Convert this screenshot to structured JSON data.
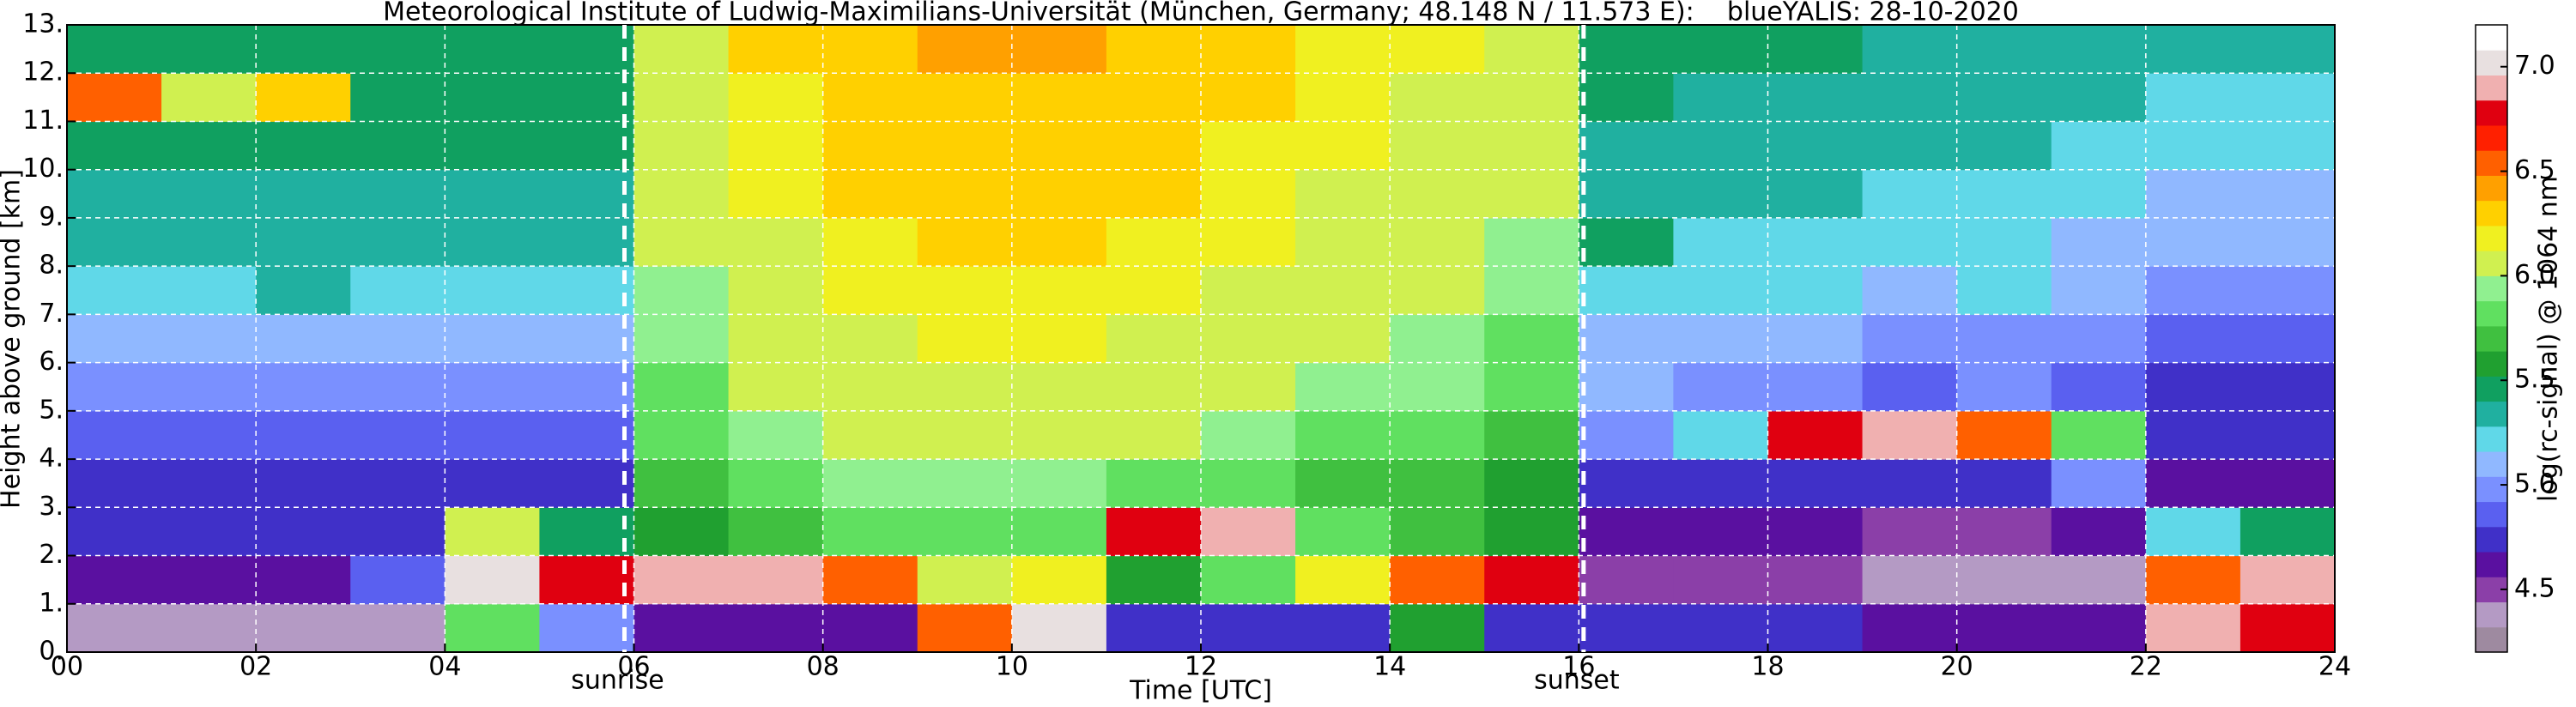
{
  "chart_data": {
    "type": "heatmap",
    "title": "Meteorological Institute of Ludwig-Maximilians-Universität (München, Germany; 48.148 N / 11.573 E):    blueYALIS: 28-10-2020",
    "x_label": "Time [UTC]",
    "y_label": "Height above ground [km]",
    "colorbar_label": "log(rc-signal) @ 1064 nm",
    "xlim": [
      0,
      24
    ],
    "ylim": [
      0,
      13
    ],
    "xticks": [
      {
        "value": 0,
        "label": "00"
      },
      {
        "value": 2,
        "label": "02"
      },
      {
        "value": 4,
        "label": "04"
      },
      {
        "value": 6,
        "label": "06"
      },
      {
        "value": 8,
        "label": "08"
      },
      10,
      12,
      14,
      16,
      18,
      20,
      22,
      24
    ],
    "yticks": [
      {
        "value": 0,
        "label": "0."
      },
      {
        "value": 1,
        "label": "1."
      },
      {
        "value": 2,
        "label": "2."
      },
      {
        "value": 3,
        "label": "3."
      },
      {
        "value": 4,
        "label": "4."
      },
      {
        "value": 5,
        "label": "5."
      },
      {
        "value": 6,
        "label": "6."
      },
      {
        "value": 7,
        "label": "7."
      },
      {
        "value": 8,
        "label": "8."
      },
      {
        "value": 9,
        "label": "9."
      },
      {
        "value": 10,
        "label": "10."
      },
      {
        "value": 11,
        "label": "11."
      },
      {
        "value": 12,
        "label": "12."
      },
      {
        "value": 13,
        "label": "13."
      }
    ],
    "clim": [
      4.2,
      7.2
    ],
    "cticks": [
      4.5,
      {
        "value": 5,
        "label": "5.0"
      },
      5.5,
      {
        "value": 6,
        "label": "6.0"
      },
      6.5,
      {
        "value": 7,
        "label": "7.0"
      }
    ],
    "colormap": [
      "#9e8aa0",
      "#b49ac4",
      "#8b3fa8",
      "#5a10a0",
      "#4030c8",
      "#5a60f0",
      "#7a90ff",
      "#90b8ff",
      "#60d8e8",
      "#20b0a0",
      "#10a060",
      "#20a030",
      "#40c040",
      "#60e060",
      "#90f090",
      "#d0f050",
      "#f0f020",
      "#ffd000",
      "#ffa000",
      "#ff6000",
      "#ff2000",
      "#e00010",
      "#f0b0b0",
      "#e8e0e0",
      "#ffffff"
    ],
    "grid": true,
    "x_edges": [
      0,
      1,
      2,
      3,
      4,
      5,
      6,
      7,
      8,
      9,
      10,
      11,
      12,
      13,
      14,
      15,
      16,
      17,
      18,
      19,
      20,
      21,
      22,
      23,
      24
    ],
    "y_edges": [
      0,
      1,
      2,
      3,
      4,
      5,
      6,
      7,
      8,
      9,
      10,
      11,
      12,
      13
    ],
    "values": [
      [
        4.4,
        4.6,
        4.7,
        4.8,
        4.9,
        5.0,
        5.1,
        5.2,
        5.3,
        5.3,
        5.4,
        6.5,
        5.5
      ],
      [
        4.4,
        4.6,
        4.7,
        4.8,
        4.9,
        5.0,
        5.1,
        5.2,
        5.3,
        5.3,
        5.4,
        6.0,
        5.5
      ],
      [
        4.4,
        4.6,
        4.7,
        4.8,
        4.9,
        5.0,
        5.1,
        5.3,
        5.3,
        5.3,
        5.4,
        6.3,
        5.5
      ],
      [
        4.4,
        4.9,
        4.8,
        4.8,
        4.9,
        5.0,
        5.1,
        5.2,
        5.3,
        5.3,
        5.4,
        5.4,
        5.5
      ],
      [
        5.8,
        7.0,
        6.0,
        4.8,
        4.9,
        5.0,
        5.1,
        5.2,
        5.3,
        5.3,
        5.4,
        5.4,
        5.5
      ],
      [
        5.0,
        6.8,
        5.5,
        4.8,
        4.9,
        5.0,
        5.1,
        5.2,
        5.3,
        5.3,
        5.4,
        5.4,
        5.5
      ],
      [
        4.6,
        6.9,
        5.6,
        5.7,
        5.8,
        5.8,
        5.9,
        5.9,
        6.0,
        6.0,
        6.0,
        6.1,
        6.1
      ],
      [
        4.6,
        6.9,
        5.7,
        5.8,
        5.9,
        6.0,
        6.0,
        6.1,
        6.1,
        6.2,
        6.2,
        6.2,
        6.3
      ],
      [
        4.6,
        6.6,
        5.8,
        5.9,
        6.0,
        6.1,
        6.1,
        6.2,
        6.2,
        6.3,
        6.3,
        6.3,
        6.3
      ],
      [
        6.5,
        6.0,
        5.8,
        5.9,
        6.0,
        6.1,
        6.2,
        6.2,
        6.3,
        6.3,
        6.3,
        6.3,
        6.4
      ],
      [
        7.0,
        6.2,
        5.8,
        5.9,
        6.0,
        6.1,
        6.2,
        6.2,
        6.3,
        6.3,
        6.3,
        6.3,
        6.4
      ],
      [
        4.8,
        5.6,
        6.8,
        5.8,
        6.0,
        6.1,
        6.1,
        6.2,
        6.2,
        6.3,
        6.3,
        6.3,
        6.3
      ],
      [
        4.7,
        5.8,
        6.9,
        5.8,
        5.9,
        6.0,
        6.1,
        6.1,
        6.2,
        6.2,
        6.2,
        6.3,
        6.3
      ],
      [
        4.7,
        6.2,
        5.8,
        5.7,
        5.8,
        5.9,
        6.0,
        6.0,
        6.1,
        6.1,
        6.2,
        6.2,
        6.2
      ],
      [
        5.6,
        6.6,
        5.7,
        5.7,
        5.8,
        5.9,
        5.9,
        6.0,
        6.0,
        6.1,
        6.1,
        6.1,
        6.2
      ],
      [
        4.7,
        6.8,
        5.6,
        5.6,
        5.7,
        5.8,
        5.8,
        5.9,
        5.9,
        6.0,
        6.0,
        6.0,
        6.1
      ],
      [
        4.8,
        4.5,
        4.6,
        4.8,
        5.0,
        5.1,
        5.1,
        5.2,
        5.4,
        5.3,
        5.3,
        5.4,
        5.4
      ],
      [
        4.8,
        4.5,
        4.6,
        4.7,
        5.2,
        5.0,
        5.1,
        5.2,
        5.2,
        5.3,
        5.3,
        5.3,
        5.4
      ],
      [
        4.7,
        4.5,
        4.6,
        4.7,
        6.8,
        5.0,
        5.1,
        5.2,
        5.2,
        5.3,
        5.3,
        5.3,
        5.4
      ],
      [
        4.6,
        4.4,
        4.5,
        4.7,
        6.9,
        4.9,
        5.0,
        5.1,
        5.2,
        5.2,
        5.3,
        5.3,
        5.3
      ],
      [
        4.6,
        4.4,
        4.5,
        4.7,
        6.5,
        5.0,
        5.0,
        5.2,
        5.2,
        5.2,
        5.3,
        5.3,
        5.3
      ],
      [
        4.6,
        4.4,
        4.6,
        5.0,
        5.8,
        4.9,
        5.0,
        5.1,
        5.1,
        5.2,
        5.2,
        5.3,
        5.3
      ],
      [
        6.9,
        6.6,
        5.2,
        4.6,
        4.7,
        4.8,
        4.9,
        5.0,
        5.1,
        5.1,
        5.2,
        5.2,
        5.3
      ],
      [
        6.8,
        6.9,
        5.4,
        4.6,
        4.7,
        4.8,
        4.9,
        5.0,
        5.1,
        5.1,
        5.2,
        5.2,
        5.3
      ]
    ],
    "annotations": [
      {
        "text": "sunrise",
        "x": 5.9
      },
      {
        "text": "sunset",
        "x": 16.05
      }
    ]
  }
}
